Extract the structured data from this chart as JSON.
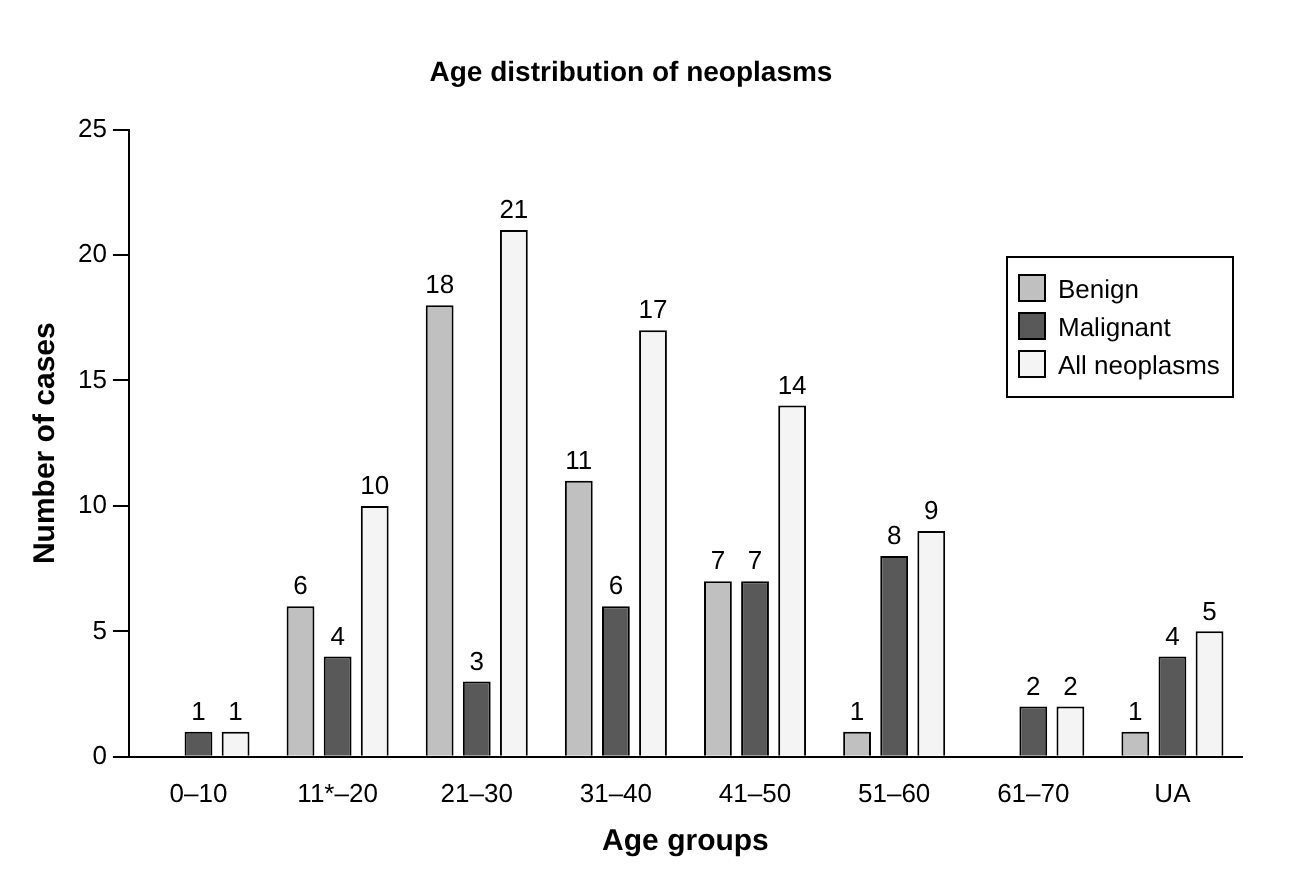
{
  "chart_data": {
    "type": "bar",
    "title": "Age distribution of neoplasms",
    "xlabel": "Age groups",
    "ylabel": "Number of cases",
    "categories": [
      "0–10",
      "11*–20",
      "21–30",
      "31–40",
      "41–50",
      "51–60",
      "61–70",
      "UA"
    ],
    "series": [
      {
        "name": "Benign",
        "color": "#c0c0c0",
        "values": [
          null,
          6,
          18,
          11,
          7,
          1,
          null,
          1
        ]
      },
      {
        "name": "Malignant",
        "color": "#595959",
        "values": [
          1,
          4,
          3,
          6,
          7,
          8,
          2,
          4
        ]
      },
      {
        "name": "All neoplasms",
        "color": "#f4f4f4",
        "values": [
          1,
          10,
          21,
          17,
          14,
          9,
          2,
          5
        ]
      }
    ],
    "ylim": [
      0,
      25
    ],
    "yticks": [
      0,
      5,
      10,
      15,
      20,
      25
    ],
    "grid": false,
    "legend": "right",
    "data_labels": true
  }
}
